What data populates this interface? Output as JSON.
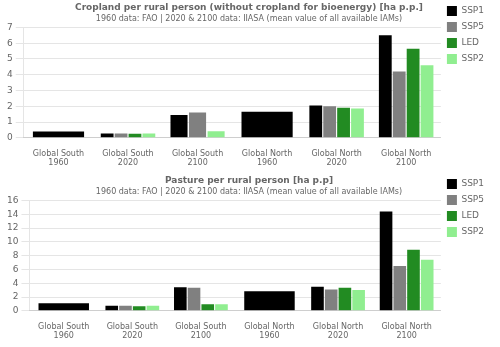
{
  "chart_data": [
    {
      "type": "bar",
      "title": "Cropland per rural person (without cropland for bioenergy) [ha p.p.]",
      "subtitle": "1960 data: FAO | 2020 & 2100 data: IIASA (mean value of all available IAMs)",
      "categories": [
        "Global South 1960",
        "Global South 2020",
        "Global South 2100",
        "Global North 1960",
        "Global North 2020",
        "Global North 2100"
      ],
      "series": [
        {
          "name": "SSP1",
          "color": "#000000",
          "values": [
            0.4,
            0.28,
            1.45,
            1.65,
            2.05,
            6.5
          ]
        },
        {
          "name": "SSP5",
          "color": "#808080",
          "values": [
            null,
            0.28,
            1.6,
            null,
            2.0,
            4.2
          ]
        },
        {
          "name": "LED",
          "color": "#228B22",
          "values": [
            null,
            0.25,
            null,
            null,
            1.9,
            5.65
          ]
        },
        {
          "name": "SSP2",
          "color": "#90EE90",
          "values": [
            null,
            0.28,
            0.42,
            null,
            1.85,
            4.6
          ]
        }
      ],
      "ylim": [
        0,
        7
      ],
      "yticks": [
        0,
        1,
        2,
        3,
        4,
        5,
        6,
        7
      ],
      "grid": true,
      "legend": "right"
    },
    {
      "type": "bar",
      "title": "Pasture per rural person [ha p.p]",
      "subtitle": "1960 data: FAO | 2020 & 2100 data: IIASA (mean value of all available IAMs)",
      "categories": [
        "Global South 1960",
        "Global South 2020",
        "Global South 2100",
        "Global North 1960",
        "Global North 2020",
        "Global North 2100"
      ],
      "series": [
        {
          "name": "SSP1",
          "color": "#000000",
          "values": [
            1.1,
            0.75,
            3.4,
            2.85,
            3.5,
            14.4
          ]
        },
        {
          "name": "SSP5",
          "color": "#808080",
          "values": [
            null,
            0.75,
            3.35,
            null,
            3.1,
            6.5
          ]
        },
        {
          "name": "LED",
          "color": "#228B22",
          "values": [
            null,
            0.65,
            0.95,
            null,
            3.35,
            8.85
          ]
        },
        {
          "name": "SSP2",
          "color": "#90EE90",
          "values": [
            null,
            0.75,
            0.95,
            null,
            3.0,
            7.4
          ]
        }
      ],
      "ylim": [
        0,
        16
      ],
      "yticks": [
        0,
        2,
        4,
        6,
        8,
        10,
        12,
        14,
        16
      ],
      "grid": true,
      "legend": "right"
    }
  ]
}
